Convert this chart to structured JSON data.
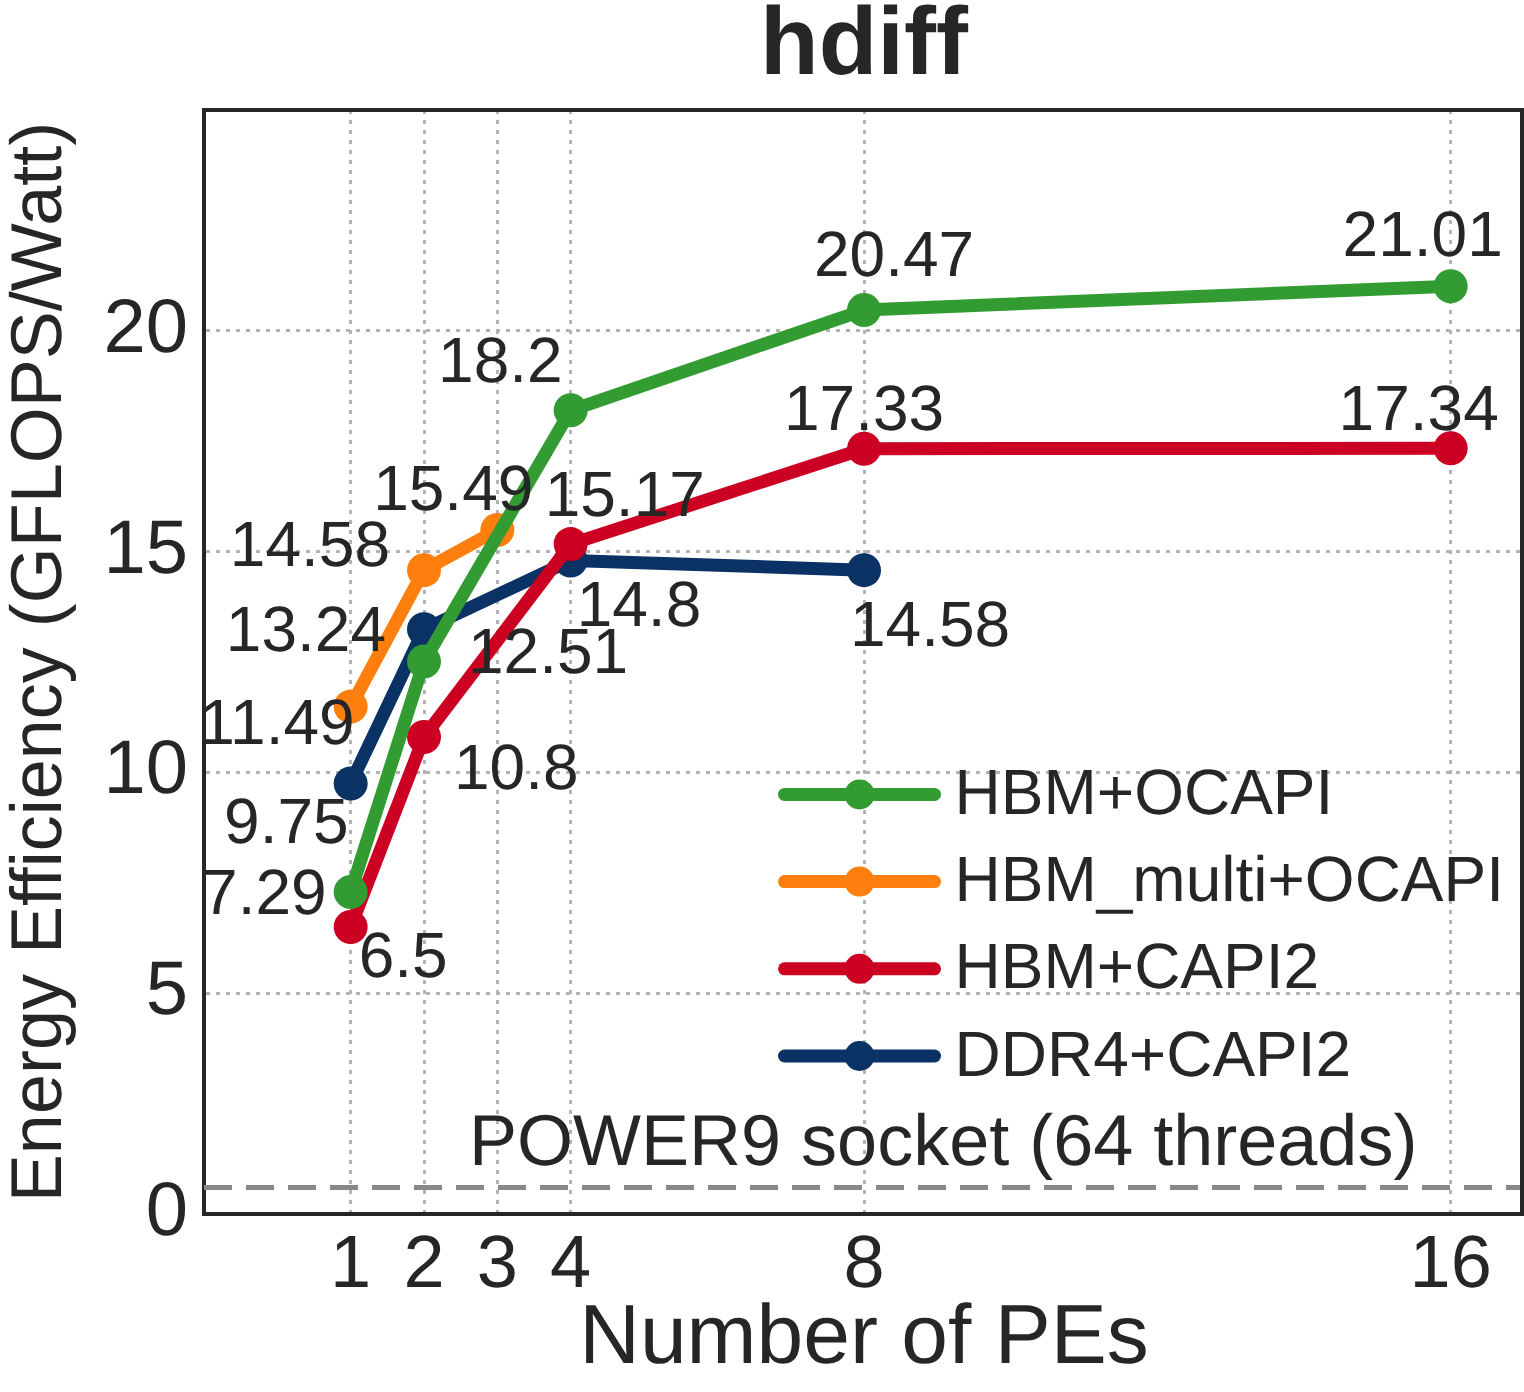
{
  "chart_data": {
    "type": "line",
    "title": "hdiff",
    "xlabel": "Number of PEs",
    "ylabel": "Energy Efficiency (GFLOPS/Watt)",
    "series": [
      {
        "name": "HBM+OCAPI",
        "color": "#329b32",
        "x": [
          1,
          2,
          4,
          8,
          16
        ],
        "values": [
          7.29,
          12.51,
          18.2,
          20.47,
          21.01
        ]
      },
      {
        "name": "HBM_multi+OCAPI",
        "color": "#ff7f0e",
        "x": [
          1,
          2,
          3
        ],
        "values": [
          11.49,
          14.58,
          15.49
        ]
      },
      {
        "name": "HBM+CAPI2",
        "color": "#cc0022",
        "x": [
          1,
          2,
          4,
          8,
          16
        ],
        "values": [
          6.5,
          10.8,
          15.17,
          17.33,
          17.34
        ]
      },
      {
        "name": "DDR4+CAPI2",
        "color": "#0b3264",
        "x": [
          1,
          2,
          4,
          8
        ],
        "values": [
          9.75,
          13.24,
          14.8,
          14.58
        ]
      }
    ],
    "xlim": [
      -1,
      17
    ],
    "xticks": [
      1,
      2,
      3,
      4,
      8,
      16
    ],
    "ylim": [
      0,
      25
    ],
    "yticks": [
      0,
      5,
      10,
      15,
      20
    ],
    "ref_lines": [
      {
        "axis": "y",
        "value": 0.6,
        "label": "POWER9 socket (64 threads)",
        "color": "#888888",
        "line_style": "dashed"
      }
    ],
    "data_labels": true,
    "grid": true,
    "legend": "bottom right",
    "marker": "circle",
    "line_style": "solid"
  }
}
